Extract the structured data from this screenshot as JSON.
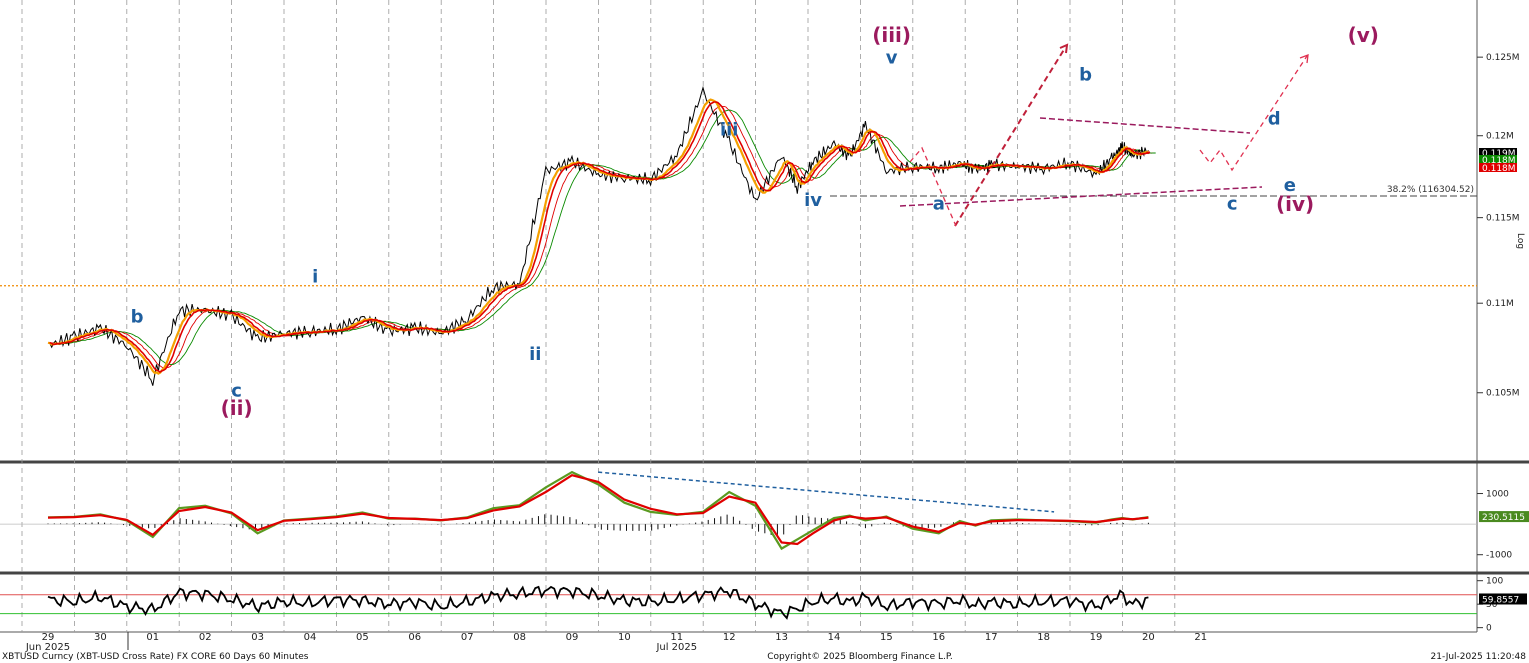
{
  "footer": {
    "left": "XBTUSD Curncy (XBT-USD Cross Rate) FX CORE 60 Days 60 Minutes",
    "center": "Copyright© 2025 Bloomberg Finance L.P.",
    "right": "21-Jul-2025 11:20:48"
  },
  "panel_labels": {
    "log_label": "Log"
  },
  "fib_label": "38.2% (116304.52)",
  "colors": {
    "price": "#000000",
    "ma_fast": "#e00000",
    "ma_mid": "#f5a000",
    "ma_slow": "#0a8a00",
    "wave_major": "#9b1a5e",
    "wave_minor": "#1f5f9f",
    "rsi_upper": "#e05050",
    "rsi_lower": "#30c030"
  },
  "chart_data": [
    {
      "type": "line",
      "title": "",
      "x_categories": [
        "29",
        "30",
        "01",
        "02",
        "03",
        "04",
        "05",
        "06",
        "07",
        "08",
        "09",
        "10",
        "11",
        "12",
        "13",
        "14",
        "15",
        "16",
        "17",
        "18",
        "19",
        "20",
        "21"
      ],
      "month_labels": [
        {
          "label": "Jun 2025",
          "at": "29"
        },
        {
          "label": "Jul 2025",
          "at": "11"
        }
      ],
      "y_scale": "log",
      "y_tick_labels": [
        "0.125M",
        "0.12M",
        "0.115M",
        "0.11M",
        "0.105M"
      ],
      "y_ticks": [
        125000,
        120000,
        115000,
        110000,
        105000
      ],
      "ylim": [
        101500,
        128500
      ],
      "last_values": [
        {
          "label": "0.119M",
          "value": 119000,
          "color": "#000000"
        },
        {
          "label": "0.118M",
          "value": 118400,
          "color": "#0a8a00"
        },
        {
          "label": "0.118M",
          "value": 117900,
          "color": "#e00000"
        }
      ],
      "price_series": {
        "name": "",
        "x": [
          0,
          0.5,
          1,
          1.5,
          2,
          2.5,
          3,
          3.5,
          4,
          4.5,
          5,
          5.5,
          6,
          6.5,
          7,
          7.5,
          8,
          8.5,
          9,
          9.5,
          10,
          10.5,
          11,
          11.5,
          12,
          12.5,
          13,
          13.5,
          14,
          14.3,
          14.6,
          15,
          15.3,
          15.6,
          16,
          16.5,
          17,
          17.4,
          17.7,
          18,
          18.5,
          19,
          19.5,
          20,
          20.3,
          20.5,
          20.7,
          21
        ],
        "y": [
          107600,
          108100,
          108600,
          107600,
          105700,
          109600,
          109600,
          109300,
          108000,
          108300,
          108400,
          108500,
          109200,
          108400,
          108600,
          108300,
          109100,
          110900,
          111100,
          117800,
          118400,
          117600,
          117400,
          117300,
          118800,
          122800,
          119600,
          116000,
          118800,
          116800,
          118400,
          119500,
          118700,
          120700,
          117800,
          118100,
          118000,
          118300,
          117900,
          118200,
          118100,
          118000,
          118300,
          117600,
          118600,
          119300,
          118800,
          119100
        ]
      },
      "annotations": [
        {
          "text": "b",
          "x": 1.7,
          "y": 108900,
          "style": "minor"
        },
        {
          "text": "c",
          "x": 3.6,
          "y": 104800,
          "style": "minor"
        },
        {
          "text": "(ii)",
          "x": 3.6,
          "y": 103800,
          "style": "major"
        },
        {
          "text": "i",
          "x": 5.1,
          "y": 111200,
          "style": "minor"
        },
        {
          "text": "ii",
          "x": 9.3,
          "y": 106800,
          "style": "minor"
        },
        {
          "text": "iii",
          "x": 13.0,
          "y": 120000,
          "style": "minor"
        },
        {
          "text": "iv",
          "x": 14.6,
          "y": 115700,
          "style": "minor"
        },
        {
          "text": "(iii)",
          "x": 16.1,
          "y": 126000,
          "style": "major"
        },
        {
          "text": "v",
          "x": 16.1,
          "y": 124600,
          "style": "minor"
        },
        {
          "text": "a",
          "x": 17.0,
          "y": 115500,
          "style": "minor"
        },
        {
          "text": "b",
          "x": 19.8,
          "y": 123500,
          "style": "minor"
        },
        {
          "text": "c",
          "x": 22.6,
          "y": 115500,
          "style": "minor"
        },
        {
          "text": "d",
          "x": 23.4,
          "y": 120700,
          "style": "minor"
        },
        {
          "text": "e",
          "x": 23.7,
          "y": 116600,
          "style": "minor"
        },
        {
          "text": "(iv)",
          "x": 23.8,
          "y": 115400,
          "style": "major"
        },
        {
          "text": "(v)",
          "x": 25.1,
          "y": 126000,
          "style": "major"
        }
      ]
    },
    {
      "type": "line",
      "title": "",
      "y_tick_labels": [
        "1000",
        "-1000"
      ],
      "y_ticks": [
        1000,
        -1000
      ],
      "ylim": [
        -1500,
        1900
      ],
      "last_value_label": "230.5115",
      "x": [
        0,
        0.5,
        1,
        1.5,
        2,
        2.5,
        3,
        3.5,
        4,
        4.5,
        5,
        5.5,
        6,
        6.5,
        7,
        7.5,
        8,
        8.5,
        9,
        9.5,
        10,
        10.5,
        11,
        11.5,
        12,
        12.5,
        13,
        13.5,
        14,
        14.3,
        14.6,
        15,
        15.3,
        15.6,
        16,
        16.5,
        17,
        17.4,
        17.7,
        18,
        18.5,
        19,
        19.5,
        20,
        20.3,
        20.5,
        20.7,
        21
      ],
      "series": [
        {
          "name": "",
          "values": [
            220,
            240,
            320,
            120,
            -420,
            520,
            600,
            350,
            -300,
            120,
            180,
            250,
            380,
            180,
            180,
            120,
            220,
            520,
            620,
            1200,
            1700,
            1300,
            700,
            400,
            300,
            400,
            1050,
            600,
            -800,
            -500,
            -200,
            200,
            280,
            120,
            250,
            -150,
            -300,
            100,
            -50,
            120,
            150,
            120,
            100,
            50,
            150,
            200,
            150,
            230
          ]
        },
        {
          "name": "",
          "values": [
            210,
            230,
            290,
            140,
            -350,
            430,
            560,
            380,
            -200,
            110,
            160,
            230,
            340,
            200,
            170,
            130,
            200,
            450,
            580,
            1050,
            1600,
            1380,
            800,
            500,
            320,
            360,
            900,
            700,
            -600,
            -650,
            -300,
            120,
            250,
            180,
            220,
            -80,
            -250,
            40,
            -20,
            90,
            130,
            120,
            110,
            70,
            130,
            180,
            160,
            210
          ]
        }
      ]
    },
    {
      "type": "line",
      "title": "",
      "y_tick_labels": [
        "100",
        "50",
        "0"
      ],
      "y_ticks": [
        100,
        50,
        0
      ],
      "ylim": [
        -5,
        110
      ],
      "upper_band": 70,
      "lower_band": 30,
      "last_value_label": "59.8557",
      "x": [
        0,
        0.5,
        1,
        1.5,
        2,
        2.5,
        3,
        3.5,
        4,
        4.5,
        5,
        5.5,
        6,
        6.5,
        7,
        7.5,
        8,
        8.5,
        9,
        9.5,
        10,
        10.5,
        11,
        11.5,
        12,
        12.5,
        13,
        13.5,
        14,
        14.3,
        14.6,
        15,
        15.3,
        15.6,
        16,
        16.5,
        17,
        17.4,
        17.7,
        18,
        18.5,
        19,
        19.5,
        20,
        20.3,
        20.5,
        20.7,
        21
      ],
      "series": [
        {
          "name": "",
          "values": [
            60,
            55,
            65,
            45,
            38,
            75,
            72,
            60,
            45,
            55,
            52,
            60,
            58,
            50,
            55,
            45,
            55,
            68,
            72,
            80,
            78,
            68,
            58,
            55,
            60,
            70,
            78,
            50,
            30,
            40,
            55,
            62,
            55,
            65,
            45,
            55,
            52,
            58,
            48,
            55,
            50,
            55,
            58,
            45,
            62,
            70,
            50,
            60
          ]
        }
      ]
    }
  ]
}
